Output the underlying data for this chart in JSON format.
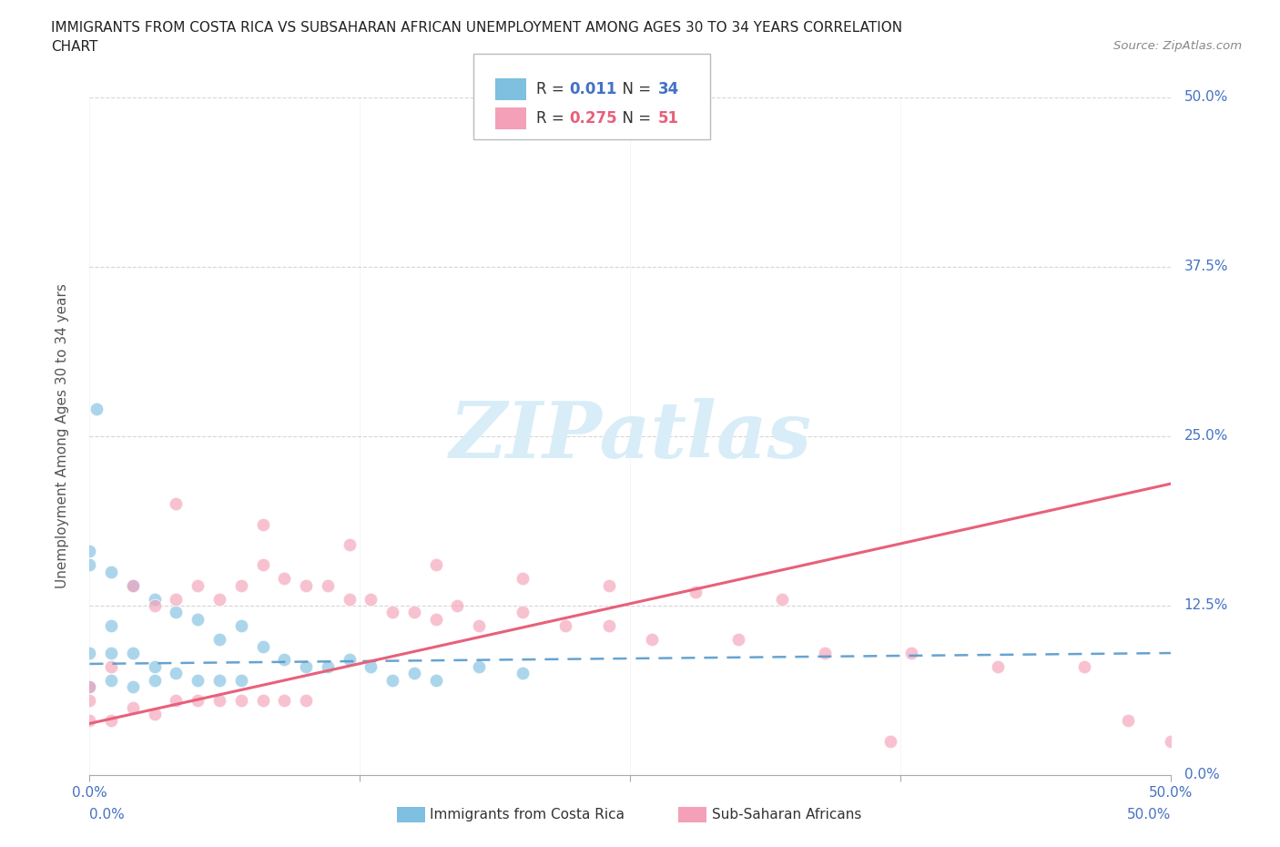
{
  "title_line1": "IMMIGRANTS FROM COSTA RICA VS SUBSAHARAN AFRICAN UNEMPLOYMENT AMONG AGES 30 TO 34 YEARS CORRELATION",
  "title_line2": "CHART",
  "source": "Source: ZipAtlas.com",
  "ylabel": "Unemployment Among Ages 30 to 34 years",
  "xlim": [
    0.0,
    0.5
  ],
  "ylim": [
    0.0,
    0.5
  ],
  "xticks": [
    0.0,
    0.125,
    0.25,
    0.375,
    0.5
  ],
  "yticks": [
    0.0,
    0.125,
    0.25,
    0.375,
    0.5
  ],
  "ytick_labels_right": [
    "0.0%",
    "12.5%",
    "25.0%",
    "37.5%",
    "50.0%"
  ],
  "r_costa_rica": 0.011,
  "n_costa_rica": 34,
  "r_subsaharan": 0.275,
  "n_subsaharan": 51,
  "costa_rica_color": "#7fbfdf",
  "subsaharan_color": "#f4a0b8",
  "costa_rica_line_color": "#5599cc",
  "subsaharan_line_color": "#e8607a",
  "background_color": "#ffffff",
  "watermark": "ZIPatlas",
  "watermark_color": "#d8edf8",
  "r_label_color_cr": "#4472c4",
  "r_label_color_ss": "#e8607a",
  "legend_label_cr": "Immigrants from Costa Rica",
  "legend_label_ss": "Sub-Saharan Africans",
  "cr_x": [
    0.003,
    0.0,
    0.0,
    0.01,
    0.0,
    0.01,
    0.02,
    0.0,
    0.01,
    0.02,
    0.03,
    0.02,
    0.03,
    0.04,
    0.03,
    0.05,
    0.04,
    0.06,
    0.05,
    0.07,
    0.06,
    0.08,
    0.07,
    0.09,
    0.01,
    0.1,
    0.11,
    0.12,
    0.13,
    0.14,
    0.15,
    0.16,
    0.18,
    0.2
  ],
  "cr_y": [
    0.27,
    0.165,
    0.155,
    0.15,
    0.09,
    0.09,
    0.14,
    0.065,
    0.07,
    0.065,
    0.13,
    0.09,
    0.08,
    0.12,
    0.07,
    0.115,
    0.075,
    0.1,
    0.07,
    0.11,
    0.07,
    0.095,
    0.07,
    0.085,
    0.11,
    0.08,
    0.08,
    0.085,
    0.08,
    0.07,
    0.075,
    0.07,
    0.08,
    0.075
  ],
  "ss_x": [
    0.0,
    0.0,
    0.0,
    0.01,
    0.01,
    0.02,
    0.02,
    0.03,
    0.03,
    0.04,
    0.04,
    0.05,
    0.05,
    0.06,
    0.06,
    0.07,
    0.07,
    0.08,
    0.08,
    0.09,
    0.09,
    0.1,
    0.1,
    0.11,
    0.12,
    0.13,
    0.14,
    0.15,
    0.16,
    0.17,
    0.18,
    0.2,
    0.22,
    0.24,
    0.26,
    0.3,
    0.34,
    0.38,
    0.42,
    0.46,
    0.04,
    0.08,
    0.12,
    0.16,
    0.2,
    0.24,
    0.28,
    0.32,
    0.37,
    0.48,
    0.5
  ],
  "ss_y": [
    0.065,
    0.055,
    0.04,
    0.08,
    0.04,
    0.14,
    0.05,
    0.125,
    0.045,
    0.13,
    0.055,
    0.14,
    0.055,
    0.13,
    0.055,
    0.14,
    0.055,
    0.155,
    0.055,
    0.145,
    0.055,
    0.14,
    0.055,
    0.14,
    0.13,
    0.13,
    0.12,
    0.12,
    0.115,
    0.125,
    0.11,
    0.12,
    0.11,
    0.11,
    0.1,
    0.1,
    0.09,
    0.09,
    0.08,
    0.08,
    0.2,
    0.185,
    0.17,
    0.155,
    0.145,
    0.14,
    0.135,
    0.13,
    0.025,
    0.04,
    0.025
  ],
  "cr_trend_x": [
    0.0,
    0.5
  ],
  "cr_trend_y": [
    0.082,
    0.09
  ],
  "ss_trend_x": [
    0.0,
    0.5
  ],
  "ss_trend_y": [
    0.038,
    0.215
  ]
}
